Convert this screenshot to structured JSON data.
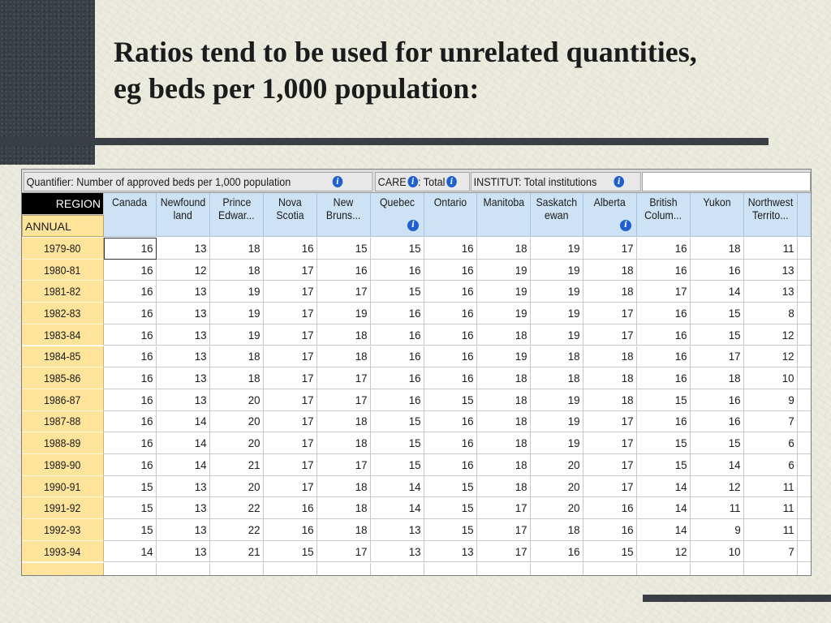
{
  "slide": {
    "title_line1": "Ratios tend to be used for unrelated quantities,",
    "title_line2": "eg beds per 1,000 population:"
  },
  "quantifier_bar": {
    "quantifier": "Quantifier: Number of approved beds per 1,000 population",
    "care": "CARE",
    "care_value": ": Total",
    "institut": "INSTITUT: Total institutions"
  },
  "table": {
    "region_label": "REGION",
    "annual_label": "ANNUAL",
    "columns": [
      [
        "Canada",
        ""
      ],
      [
        "Newfound",
        "land"
      ],
      [
        "Prince",
        "Edwar..."
      ],
      [
        "Nova",
        "Scotia"
      ],
      [
        "New",
        "Bruns..."
      ],
      [
        "Quebec",
        ""
      ],
      [
        "Ontario",
        ""
      ],
      [
        "Manitoba",
        ""
      ],
      [
        "Saskatch",
        "ewan"
      ],
      [
        "Alberta",
        ""
      ],
      [
        "British",
        "Colum..."
      ],
      [
        "Yukon",
        ""
      ],
      [
        "Northwest",
        "Territo..."
      ]
    ],
    "rows": [
      {
        "year": "1979-80",
        "values": [
          "16",
          "13",
          "18",
          "16",
          "15",
          "15",
          "16",
          "18",
          "19",
          "17",
          "16",
          "18",
          "11"
        ]
      },
      {
        "year": "1980-81",
        "values": [
          "16",
          "12",
          "18",
          "17",
          "16",
          "16",
          "16",
          "19",
          "19",
          "18",
          "16",
          "16",
          "13"
        ]
      },
      {
        "year": "1981-82",
        "values": [
          "16",
          "13",
          "19",
          "17",
          "17",
          "15",
          "16",
          "19",
          "19",
          "18",
          "17",
          "14",
          "13"
        ]
      },
      {
        "year": "1982-83",
        "values": [
          "16",
          "13",
          "19",
          "17",
          "19",
          "16",
          "16",
          "19",
          "19",
          "17",
          "16",
          "15",
          "8"
        ]
      },
      {
        "year": "1983-84",
        "values": [
          "16",
          "13",
          "19",
          "17",
          "18",
          "16",
          "16",
          "18",
          "19",
          "17",
          "16",
          "15",
          "12"
        ]
      },
      {
        "year": "1984-85",
        "values": [
          "16",
          "13",
          "18",
          "17",
          "18",
          "16",
          "16",
          "19",
          "18",
          "18",
          "16",
          "17",
          "12"
        ]
      },
      {
        "year": "1985-86",
        "values": [
          "16",
          "13",
          "18",
          "17",
          "17",
          "16",
          "16",
          "18",
          "18",
          "18",
          "16",
          "18",
          "10"
        ]
      },
      {
        "year": "1986-87",
        "values": [
          "16",
          "13",
          "20",
          "17",
          "17",
          "16",
          "15",
          "18",
          "19",
          "18",
          "15",
          "16",
          "9"
        ]
      },
      {
        "year": "1987-88",
        "values": [
          "16",
          "14",
          "20",
          "17",
          "18",
          "15",
          "16",
          "18",
          "19",
          "17",
          "16",
          "16",
          "7"
        ]
      },
      {
        "year": "1988-89",
        "values": [
          "16",
          "14",
          "20",
          "17",
          "18",
          "15",
          "16",
          "18",
          "19",
          "17",
          "15",
          "15",
          "6"
        ]
      },
      {
        "year": "1989-90",
        "values": [
          "16",
          "14",
          "21",
          "17",
          "17",
          "15",
          "16",
          "18",
          "20",
          "17",
          "15",
          "14",
          "6"
        ]
      },
      {
        "year": "1990-91",
        "values": [
          "15",
          "13",
          "20",
          "17",
          "18",
          "14",
          "15",
          "18",
          "20",
          "17",
          "14",
          "12",
          "11"
        ]
      },
      {
        "year": "1991-92",
        "values": [
          "15",
          "13",
          "22",
          "16",
          "18",
          "14",
          "15",
          "17",
          "20",
          "16",
          "14",
          "11",
          "11"
        ]
      },
      {
        "year": "1992-93",
        "values": [
          "15",
          "13",
          "22",
          "16",
          "18",
          "13",
          "15",
          "17",
          "18",
          "16",
          "14",
          "9",
          "11"
        ]
      },
      {
        "year": "1993-94",
        "values": [
          "14",
          "13",
          "21",
          "15",
          "17",
          "13",
          "13",
          "17",
          "16",
          "15",
          "12",
          "10",
          "7"
        ]
      }
    ]
  }
}
